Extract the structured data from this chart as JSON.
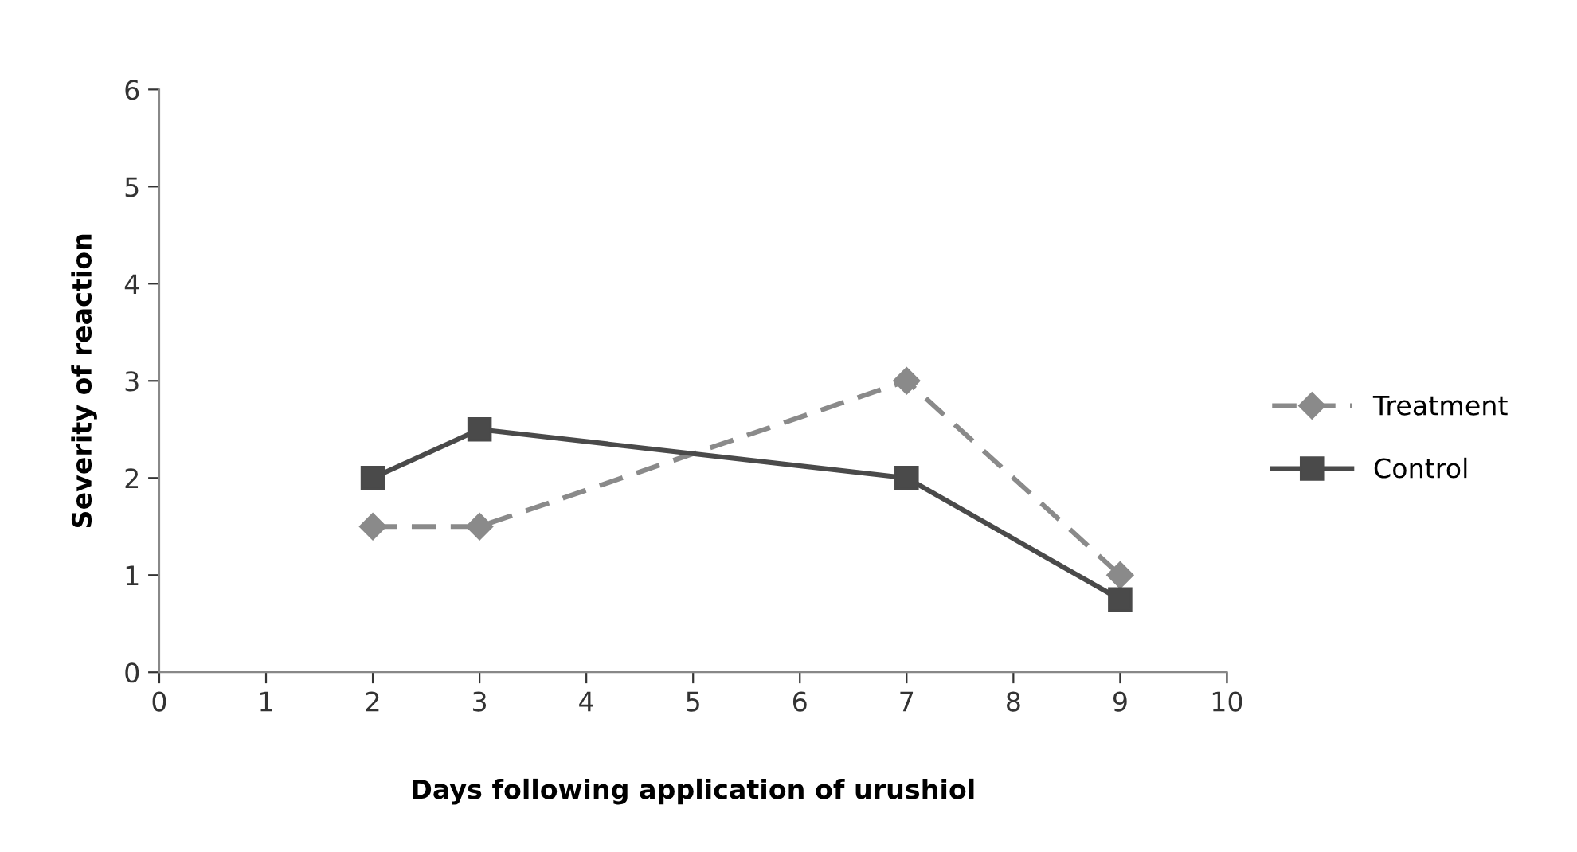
{
  "chart_data": {
    "type": "line",
    "xlabel": "Days following application of urushiol",
    "ylabel": "Severity of reaction",
    "x": [
      2,
      3,
      7,
      9
    ],
    "series": [
      {
        "name": "Treatment",
        "color": "#8a8a8a",
        "values": [
          1.5,
          1.5,
          3,
          1
        ],
        "marker": "diamond",
        "line_style": "dashed"
      },
      {
        "name": "Control",
        "color": "#4a4a4a",
        "values": [
          2,
          2.5,
          2,
          0.75
        ],
        "marker": "square",
        "line_style": "solid"
      }
    ],
    "xlim": [
      0,
      10
    ],
    "xticks": [
      0,
      1,
      2,
      3,
      4,
      5,
      6,
      7,
      8,
      9,
      10
    ],
    "ylim": [
      0,
      6
    ],
    "yticks": [
      0,
      1,
      2,
      3,
      4,
      5,
      6
    ],
    "grid": false,
    "legend": "right"
  }
}
